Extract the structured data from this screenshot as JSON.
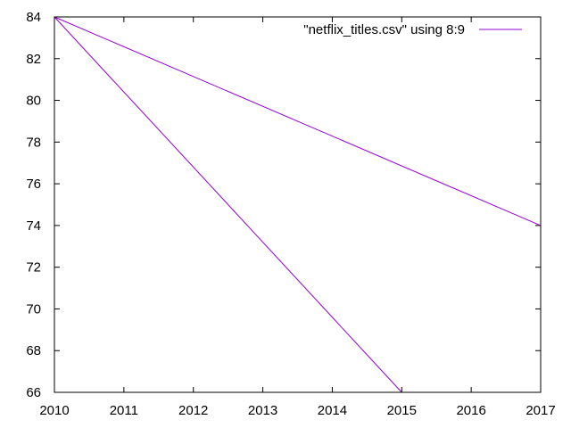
{
  "chart_data": {
    "type": "line",
    "title": "",
    "xlabel": "",
    "ylabel": "",
    "xlim": [
      2010,
      2017
    ],
    "ylim": [
      66,
      84
    ],
    "x_ticks": [
      "2010",
      "2011",
      "2012",
      "2013",
      "2014",
      "2015",
      "2016",
      "2017"
    ],
    "y_ticks": [
      "66",
      "68",
      "70",
      "72",
      "74",
      "76",
      "78",
      "80",
      "82",
      "84"
    ],
    "grid": false,
    "legend_position": "top-right",
    "series": [
      {
        "name": "\"netflix_titles.csv\" using 8:9",
        "color": "#9400d3",
        "x": [
          2010,
          2017,
          2010,
          2015
        ],
        "y": [
          84,
          74,
          84,
          66
        ]
      }
    ]
  }
}
